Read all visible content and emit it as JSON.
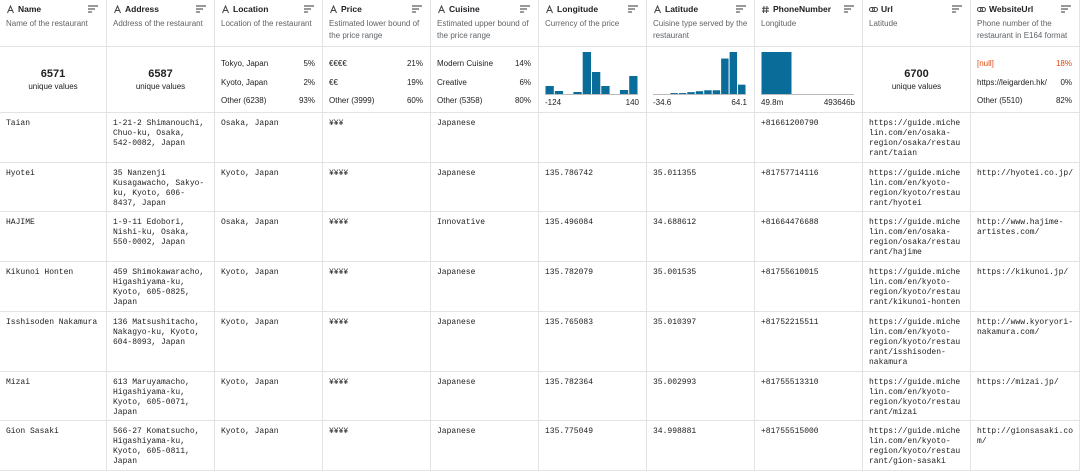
{
  "columns": [
    {
      "name": "Name",
      "description": "Name of the restaurant",
      "summary": {
        "kind": "unique",
        "count": "6571",
        "label": "unique values"
      }
    },
    {
      "name": "Address",
      "description": "Address of the restaurant",
      "summary": {
        "kind": "unique",
        "count": "6587",
        "label": "unique values"
      }
    },
    {
      "name": "Location",
      "description": "Location of the restaurant",
      "summary": {
        "kind": "top",
        "items": [
          {
            "label": "Tokyo, Japan",
            "pct": "5%"
          },
          {
            "label": "Kyoto, Japan",
            "pct": "2%"
          },
          {
            "label": "Other (6238)",
            "pct": "93%"
          }
        ]
      }
    },
    {
      "name": "Price",
      "description": "Estimated lower bound of the price range",
      "summary": {
        "kind": "top",
        "items": [
          {
            "label": "€€€€",
            "pct": "21%"
          },
          {
            "label": "€€",
            "pct": "19%"
          },
          {
            "label": "Other (3999)",
            "pct": "60%"
          }
        ]
      }
    },
    {
      "name": "Cuisine",
      "description": "Estimated upper bound of the price range",
      "summary": {
        "kind": "top",
        "items": [
          {
            "label": "Modern Cuisine",
            "pct": "14%"
          },
          {
            "label": "Creative",
            "pct": "6%"
          },
          {
            "label": "Other (5358)",
            "pct": "80%"
          }
        ]
      }
    },
    {
      "name": "Longitude",
      "description": "Currency of the price",
      "summary": {
        "kind": "histogram",
        "counts": [
          8,
          3,
          0,
          2,
          42,
          22,
          8,
          0,
          4,
          18
        ],
        "color": "#0a6d99",
        "min": "-124",
        "max": "140"
      }
    },
    {
      "name": "Latitude",
      "description": "Cuisine type served by the restaurant",
      "summary": {
        "kind": "histogram",
        "counts": [
          0,
          0,
          1,
          1,
          2,
          3,
          4,
          4,
          38,
          45,
          10
        ],
        "color": "#0a6d99",
        "min": "-34.6",
        "max": "64.1"
      }
    },
    {
      "name": "PhoneNumber",
      "description": "Longitude",
      "summary": {
        "kind": "histogram",
        "counts": [
          42,
          0,
          0
        ],
        "color": "#0a6d99",
        "min": "49.8m",
        "max": "493646b"
      }
    },
    {
      "name": "Url",
      "description": "Latitude",
      "summary": {
        "kind": "unique",
        "count": "6700",
        "label": "unique values"
      }
    },
    {
      "name": "WebsiteUrl",
      "description": "Phone number of the restaurant in E164 format",
      "summary": {
        "kind": "top",
        "items": [
          {
            "label": "[null]",
            "pct": "18%",
            "color": "#d9480f"
          },
          {
            "label": "https://leigarden.hk/",
            "pct": "0%"
          },
          {
            "label": "Other (5510)",
            "pct": "82%"
          }
        ]
      }
    }
  ],
  "rows": [
    [
      "Taian",
      "1-21-2 Shimanouchi, Chuo-ku, Osaka, 542-0082, Japan",
      "Osaka, Japan",
      "¥¥¥",
      "Japanese",
      null,
      null,
      "+81661200790",
      "https://guide.michelin.com/en/osaka-region/osaka/restaurant/taian",
      null
    ],
    [
      "Hyotei",
      "35 Nanzenji Kusagawacho, Sakyo-ku, Kyoto, 606-8437, Japan",
      "Kyoto, Japan",
      "¥¥¥¥",
      "Japanese",
      "135.786742",
      "35.011355",
      "+81757714116",
      "https://guide.michelin.com/en/kyoto-region/kyoto/restaurant/hyotei",
      "http://hyotei.co.jp/"
    ],
    [
      "HAJIME",
      "1-9-11 Edobori, Nishi-ku, Osaka, 550-0002, Japan",
      "Osaka, Japan",
      "¥¥¥¥",
      "Innovative",
      "135.496084",
      "34.688612",
      "+81664476688",
      "https://guide.michelin.com/en/osaka-region/osaka/restaurant/hajime",
      "http://www.hajime-artistes.com/"
    ],
    [
      "Kikunoi Honten",
      "459 Shimokawaracho, Higashiyama-ku, Kyoto, 605-0825, Japan",
      "Kyoto, Japan",
      "¥¥¥¥",
      "Japanese",
      "135.782079",
      "35.001535",
      "+81755610015",
      "https://guide.michelin.com/en/kyoto-region/kyoto/restaurant/kikunoi-honten",
      "https://kikunoi.jp/"
    ],
    [
      "Isshisoden Nakamura",
      "136 Matsushitacho, Nakagyo-ku, Kyoto, 604-8093, Japan",
      "Kyoto, Japan",
      "¥¥¥¥",
      "Japanese",
      "135.765083",
      "35.010397",
      "+81752215511",
      "https://guide.michelin.com/en/kyoto-region/kyoto/restaurant/isshisoden-nakamura",
      "http://www.kyoryori-nakamura.com/"
    ],
    [
      "Mizai",
      "613 Maruyamacho, Higashiyama-ku, Kyoto, 605-0071, Japan",
      "Kyoto, Japan",
      "¥¥¥¥",
      "Japanese",
      "135.782364",
      "35.002993",
      "+81755513310",
      "https://guide.michelin.com/en/kyoto-region/kyoto/restaurant/mizai",
      "https://mizai.jp/"
    ],
    [
      "Gion Sasaki",
      "566-27 Komatsucho, Higashiyama-ku, Kyoto, 605-0811, Japan",
      "Kyoto, Japan",
      "¥¥¥¥",
      "Japanese",
      "135.775049",
      "34.998881",
      "+81755515000",
      "https://guide.michelin.com/en/kyoto-region/kyoto/restaurant/gion-sasaki",
      "http://gionsasaki.com/"
    ]
  ]
}
